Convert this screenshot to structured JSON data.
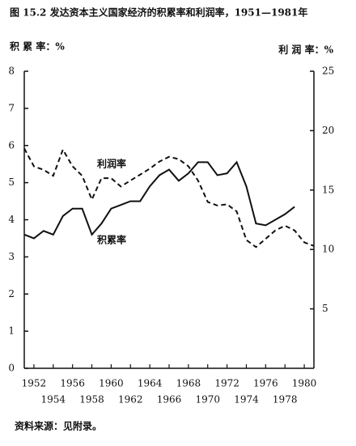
{
  "chart_data": {
    "type": "line",
    "title": "图 15.2 发达资本主义国家经济的积累率和利润率，1951—1981年",
    "y_label": "积 累 率：%",
    "y2_label": "利 润 率：%",
    "source": "资料来源：见附录。",
    "x": [
      1951,
      1952,
      1953,
      1954,
      1955,
      1956,
      1957,
      1958,
      1959,
      1960,
      1961,
      1962,
      1963,
      1964,
      1965,
      1966,
      1967,
      1968,
      1969,
      1970,
      1971,
      1972,
      1973,
      1974,
      1975,
      1976,
      1977,
      1978,
      1979,
      1980,
      1981
    ],
    "series": [
      {
        "name": "积累率",
        "color": "#111111",
        "line_style": "solid",
        "values": [
          3.6,
          3.5,
          3.7,
          3.6,
          4.1,
          4.3,
          4.3,
          3.6,
          3.9,
          4.3,
          4.4,
          4.5,
          4.5,
          4.9,
          5.2,
          5.35,
          5.05,
          5.25,
          5.55,
          5.55,
          5.2,
          5.25,
          5.55,
          4.9,
          3.9,
          3.85,
          4.0,
          4.15,
          4.35,
          null,
          null
        ]
      },
      {
        "name": "利润率",
        "color": "#111111",
        "line_style": "dashed",
        "axis": "y2",
        "values": [
          18.5,
          17.0,
          16.7,
          16.2,
          18.4,
          17.0,
          16.2,
          14.2,
          16.0,
          16.0,
          15.3,
          15.8,
          16.3,
          16.8,
          17.4,
          17.8,
          17.6,
          17.0,
          15.8,
          14.0,
          13.7,
          13.8,
          13.2,
          10.8,
          10.2,
          10.9,
          11.6,
          12.0,
          11.6,
          10.6,
          10.3
        ]
      }
    ],
    "xlim": [
      1951,
      1981
    ],
    "xticks": [
      1952,
      1954,
      1956,
      1958,
      1960,
      1962,
      1964,
      1966,
      1968,
      1970,
      1972,
      1974,
      1976,
      1978,
      1980
    ],
    "ylim": [
      0,
      8
    ],
    "yticks": [
      0,
      1,
      2,
      3,
      4,
      5,
      6,
      7,
      8
    ],
    "y2lim": [
      0,
      25
    ],
    "y2ticks": [
      5,
      10,
      15,
      20,
      25
    ],
    "grid": false
  }
}
